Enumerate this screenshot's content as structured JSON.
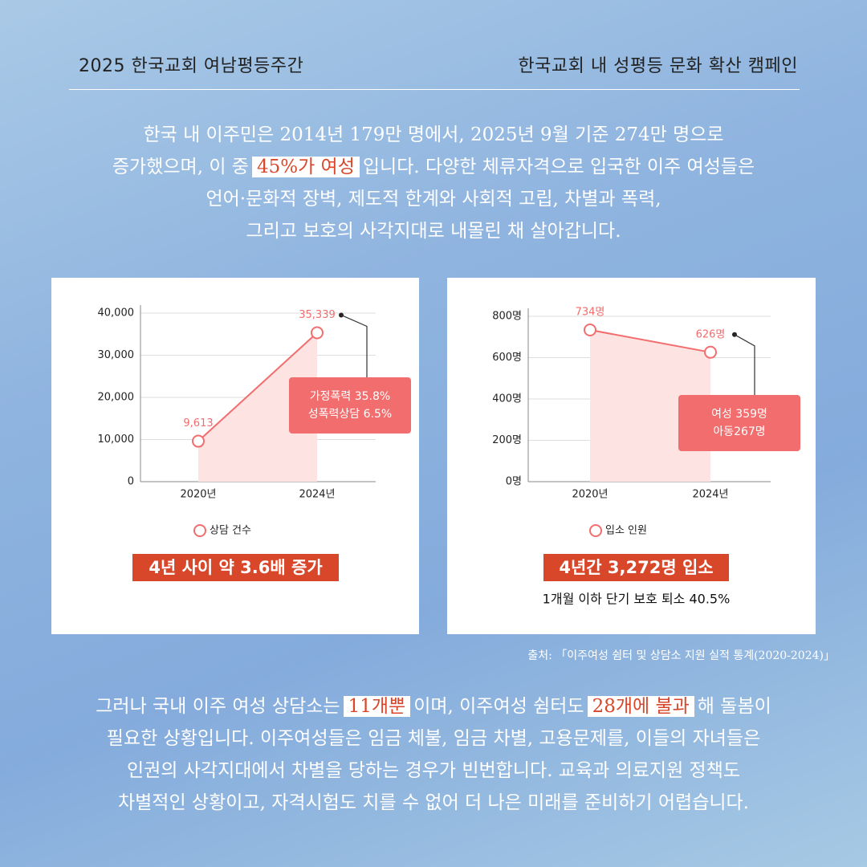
{
  "header": {
    "left": "2025 한국교회 여남평등주간",
    "right": "한국교회 내 성평등 문화 확산 캠페인"
  },
  "intro": [
    [
      "한국 내 이주민은 2014년 179만 명에서, 2025년 9월 기준 274만 명으로"
    ],
    [
      "증가했으며, 이 중",
      "45%가 여성",
      "입니다. 다양한 체류자격으로 입국한 이주 여성들은"
    ],
    [
      "언어·문화적 장벽, 제도적 한계와 사회적 고립, 차별과 폭력,"
    ],
    [
      "그리고 보호의 사각지대로 내몰린 채 살아갑니다."
    ]
  ],
  "chart_data": [
    {
      "type": "line",
      "categories": [
        "2020년",
        "2024년"
      ],
      "series": [
        {
          "name": "상담 건수",
          "color": "#f26d6d",
          "values": [
            9613,
            35339
          ],
          "value_labels": [
            "9,613",
            "35,339"
          ]
        }
      ],
      "ylim": [
        0,
        40000
      ],
      "yticks": [
        0,
        {
          "value": 10000,
          "label": "10,000"
        },
        {
          "value": 20000,
          "label": "20,000"
        },
        {
          "value": 30000,
          "label": "30,000"
        },
        {
          "value": 40000,
          "label": "40,000"
        }
      ],
      "grid": true,
      "annotation": [
        "가정폭력 35.8%",
        "성폭력상담 6.5%"
      ],
      "summary": "4년 사이 약 3.6배 증가"
    },
    {
      "type": "line",
      "categories": [
        "2020년",
        "2024년"
      ],
      "series": [
        {
          "name": "입소 인원",
          "color": "#f26d6d",
          "values": [
            734,
            626
          ],
          "value_labels": [
            "734명",
            "626명"
          ]
        }
      ],
      "ylim": [
        0,
        800
      ],
      "yticks": [
        {
          "value": 0,
          "label": "0명"
        },
        {
          "value": 200,
          "label": "200명"
        },
        {
          "value": 400,
          "label": "400명"
        },
        {
          "value": 600,
          "label": "600명"
        },
        {
          "value": 800,
          "label": "800명"
        }
      ],
      "grid": true,
      "annotation": [
        "여성 359명",
        "아동267명"
      ],
      "summary": "4년간 3,272명 입소",
      "note": "1개월 이하 단기 보호 퇴소 40.5%"
    }
  ],
  "source": "출처: 「이주여성 쉼터 및 상담소 지원 실적 통계(2020-2024)」",
  "outro": [
    [
      "그러나 국내 이주 여성 상담소는",
      "11개뿐",
      "이며, 이주여성 쉼터도",
      "28개에 불과",
      "해 돌봄이"
    ],
    [
      "필요한 상황입니다. 이주여성들은 임금 체불, 임금 차별, 고용문제를, 이들의 자녀들은"
    ],
    [
      "인권의 사각지대에서 차별을 당하는 경우가 빈번합니다. 교육과 의료지원 정책도"
    ],
    [
      "차별적인 상황이고, 자격시험도 치를 수 없어 더 나은 미래를 준비하기 어렵습니다."
    ]
  ]
}
